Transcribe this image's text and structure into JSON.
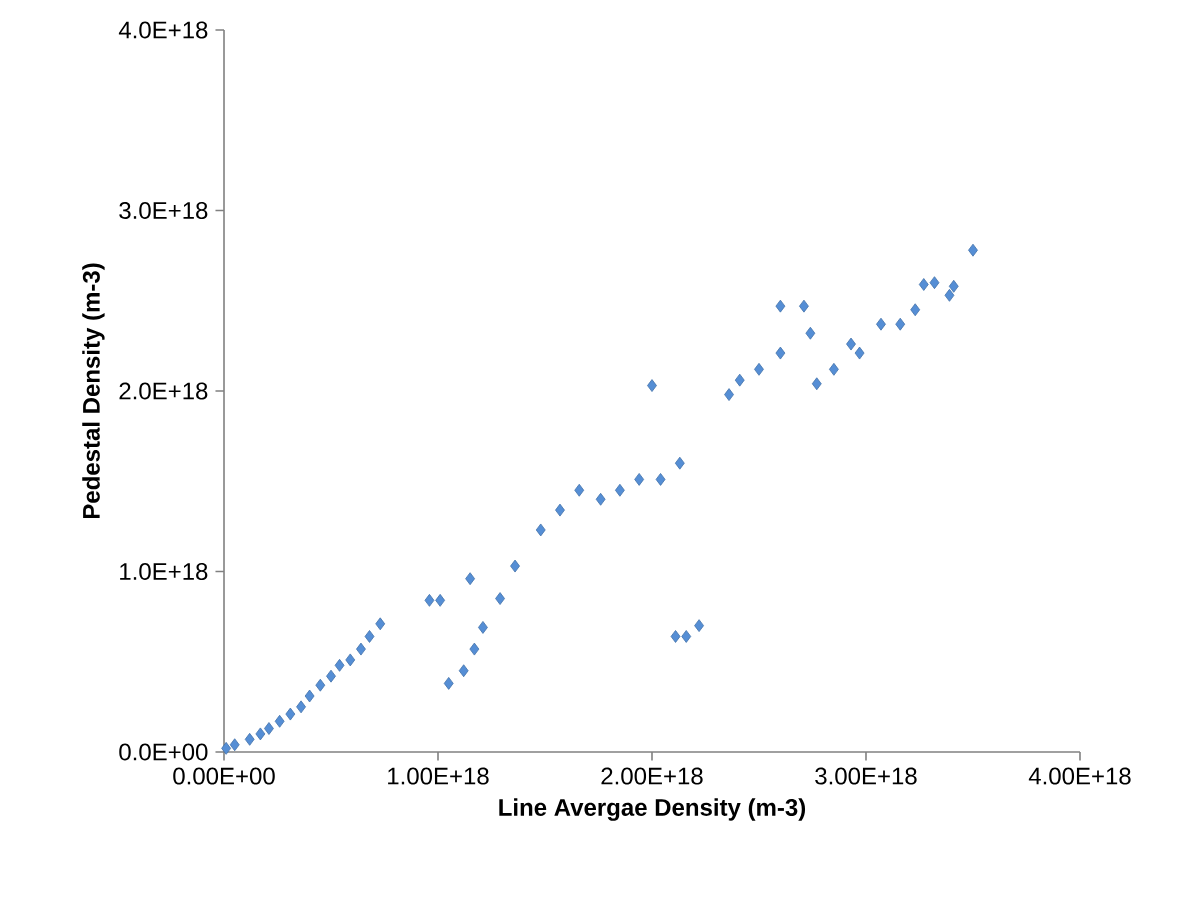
{
  "chart_data": {
    "type": "scatter",
    "xlabel": "Line Avergae Density (m-3)",
    "ylabel": "Pedestal Density (m-3)",
    "marker": "diamond",
    "grid": false,
    "xlim": [
      0,
      4e+18
    ],
    "ylim": [
      0,
      4e+18
    ],
    "xticks": [
      {
        "value": 0,
        "label": "0.00E+00"
      },
      {
        "value": 1e+18,
        "label": "1.00E+18"
      },
      {
        "value": 2e+18,
        "label": "2.00E+18"
      },
      {
        "value": 3e+18,
        "label": "3.00E+18"
      },
      {
        "value": 4e+18,
        "label": "4.00E+18"
      }
    ],
    "yticks": [
      {
        "value": 0,
        "label": "0.0E+00"
      },
      {
        "value": 1e+18,
        "label": "1.0E+18"
      },
      {
        "value": 2e+18,
        "label": "2.0E+18"
      },
      {
        "value": 3e+18,
        "label": "3.0E+18"
      },
      {
        "value": 4e+18,
        "label": "4.0E+18"
      }
    ],
    "series": [
      {
        "color": "#558ed5",
        "x": [
          1e+16,
          5e+16,
          1.2e+17,
          1.7e+17,
          2.1e+17,
          2.6e+17,
          3.1e+17,
          3.6e+17,
          4e+17,
          4.5e+17,
          5e+17,
          5.4e+17,
          5.9e+17,
          6.4e+17,
          6.8e+17,
          7.3e+17,
          9.6e+17,
          1.01e+18,
          1.15e+18,
          1.05e+18,
          1.12e+18,
          1.17e+18,
          1.21e+18,
          1.29e+18,
          1.36e+18,
          1.48e+18,
          1.57e+18,
          1.66e+18,
          1.76e+18,
          1.85e+18,
          1.94e+18,
          2.04e+18,
          2.13e+18,
          2e+18,
          2.11e+18,
          2.16e+18,
          2.22e+18,
          2.36e+18,
          2.41e+18,
          2.5e+18,
          2.6e+18,
          2.74e+18,
          2.6e+18,
          2.71e+18,
          2.77e+18,
          2.85e+18,
          2.93e+18,
          2.97e+18,
          3.07e+18,
          3.16e+18,
          3.23e+18,
          3.27e+18,
          3.32e+18,
          3.39e+18,
          3.41e+18,
          3.5e+18
        ],
        "values": [
          2e+16,
          4e+16,
          7e+16,
          1e+17,
          1.3e+17,
          1.7e+17,
          2.1e+17,
          2.5e+17,
          3.1e+17,
          3.7e+17,
          4.2e+17,
          4.8e+17,
          5.1e+17,
          5.7e+17,
          6.4e+17,
          7.1e+17,
          8.4e+17,
          8.4e+17,
          9.6e+17,
          3.8e+17,
          4.5e+17,
          5.7e+17,
          6.9e+17,
          8.5e+17,
          1.03e+18,
          1.23e+18,
          1.34e+18,
          1.45e+18,
          1.4e+18,
          1.45e+18,
          1.51e+18,
          1.51e+18,
          1.6e+18,
          2.03e+18,
          6.4e+17,
          6.4e+17,
          7e+17,
          1.98e+18,
          2.06e+18,
          2.12e+18,
          2.21e+18,
          2.32e+18,
          2.47e+18,
          2.47e+18,
          2.04e+18,
          2.12e+18,
          2.26e+18,
          2.21e+18,
          2.37e+18,
          2.37e+18,
          2.45e+18,
          2.59e+18,
          2.6e+18,
          2.53e+18,
          2.58e+18,
          2.78e+18
        ]
      }
    ]
  }
}
